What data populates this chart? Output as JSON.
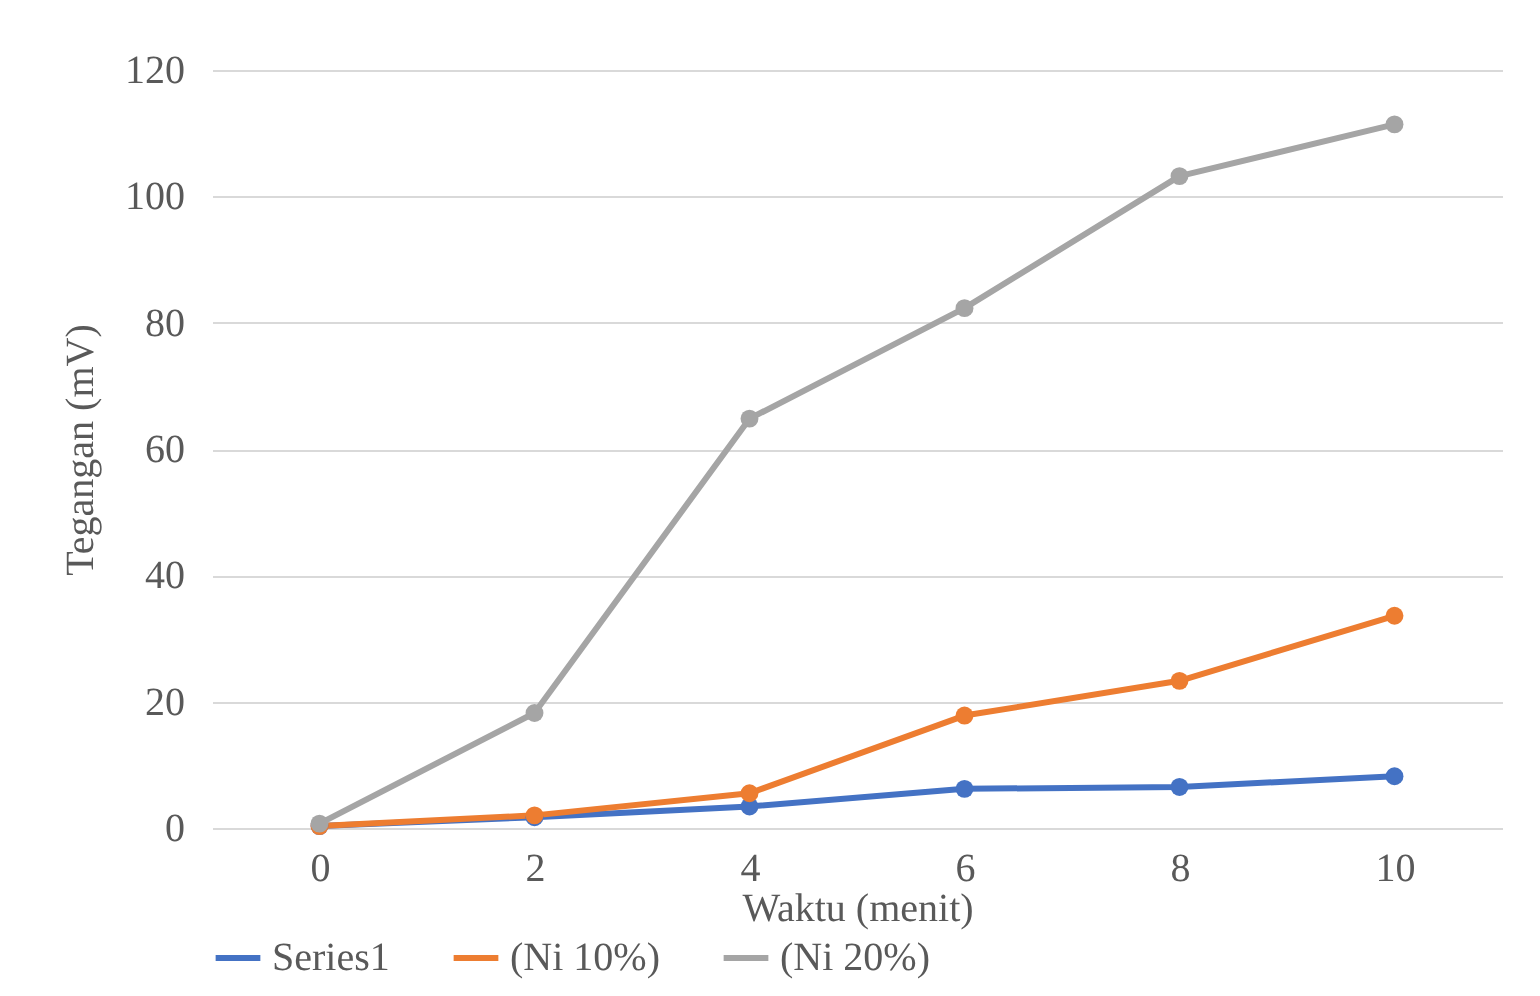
{
  "chart_data": {
    "type": "line",
    "xlabel": "Waktu (menit)",
    "ylabel": "Tegangan (mV)",
    "categories": [
      "0",
      "2",
      "4",
      "6",
      "8",
      "10"
    ],
    "series": [
      {
        "name": "Series1",
        "color": "#4472c4",
        "values": [
          0.3,
          1.7,
          3.4,
          6.2,
          6.5,
          8.2
        ]
      },
      {
        "name": "(Ni 10%)",
        "color": "#ed7d31",
        "values": [
          0.3,
          2,
          5.5,
          17.8,
          23.3,
          33.6
        ]
      },
      {
        "name": "(Ni 20%)",
        "color": "#a5a5a5",
        "values": [
          0.7,
          18.2,
          64.8,
          82.3,
          103.2,
          111.4
        ]
      }
    ],
    "ylim": [
      0,
      120
    ],
    "yticks": [
      0,
      20,
      40,
      60,
      80,
      100,
      120
    ],
    "grid": "y",
    "legend": "bottom",
    "marker": "circle",
    "line_style": "solid"
  }
}
